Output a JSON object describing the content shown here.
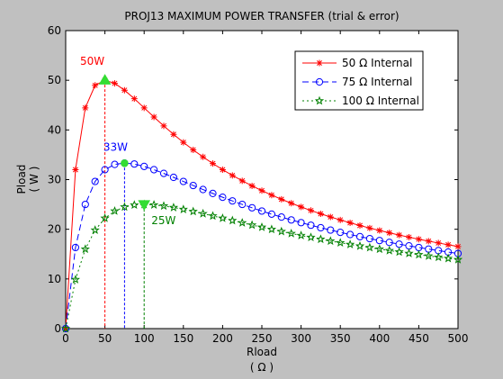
{
  "chart_data": {
    "type": "line",
    "title": "PROJ13 MAXIMUM POWER TRANSFER (trial & error)",
    "xlabel": "Rload",
    "xlabel_unit": "( Ω )",
    "ylabel": "Pload",
    "ylabel_unit": "( W )",
    "xlim": [
      0,
      500
    ],
    "ylim": [
      0,
      60
    ],
    "xticks": [
      0,
      50,
      100,
      150,
      200,
      250,
      300,
      350,
      400,
      450,
      500
    ],
    "yticks": [
      0,
      10,
      20,
      30,
      40,
      50,
      60
    ],
    "grid": false,
    "legend_position": "top-right",
    "source_voltage_v": 100,
    "x_step": 12.5,
    "series": [
      {
        "name": "50 Ω Internal",
        "internal_ohms": 50,
        "color": "#ff0000",
        "line_style": "solid",
        "marker": "asterisk"
      },
      {
        "name": "75 Ω Internal",
        "internal_ohms": 75,
        "color": "#0000ff",
        "line_style": "dashed",
        "marker": "circle"
      },
      {
        "name": "100 Ω Internal",
        "internal_ohms": 100,
        "color": "#008000",
        "line_style": "dotted",
        "marker": "pentagram"
      }
    ],
    "annotations": [
      {
        "label": "50W",
        "x": 50,
        "y": 50,
        "color": "#ff0000",
        "line_color": "#ff0000",
        "marker": "up-triangle",
        "marker_color": "#33dd33"
      },
      {
        "label": "33W",
        "x": 75,
        "y": 33.3,
        "color": "#0000ff",
        "line_color": "#0000ff",
        "marker": "circle",
        "marker_color": "#33dd33"
      },
      {
        "label": "25W",
        "x": 100,
        "y": 25,
        "color": "#008000",
        "line_color": "#008000",
        "marker": "down-triangle",
        "marker_color": "#33dd33"
      }
    ]
  }
}
